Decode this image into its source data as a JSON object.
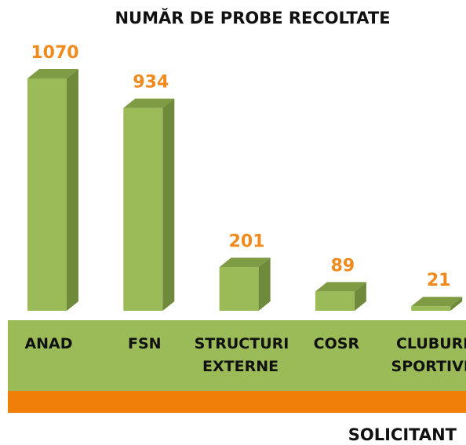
{
  "chart_data": {
    "type": "bar3d",
    "title": "NUMĂR DE PROBE RECOLTATE",
    "x_label": "SOLICITANT",
    "categories": [
      "ANAD",
      "FSN",
      "STRUCTURI EXTERNE",
      "COSR",
      "CLUBURI SPORTIVE"
    ],
    "values": [
      1070,
      934,
      201,
      89,
      21
    ],
    "color": "#9bbb59",
    "value_label_color": "#f08a1c"
  }
}
